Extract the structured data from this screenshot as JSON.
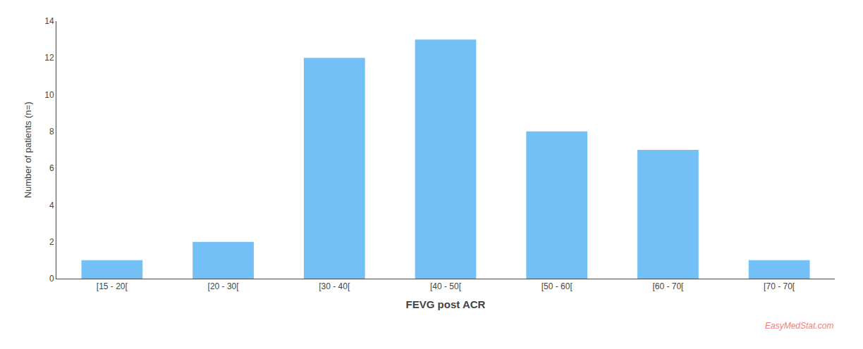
{
  "chart_data": {
    "type": "bar",
    "categories": [
      "[15 - 20[",
      "[20 - 30[",
      "[30 - 40[",
      "[40 - 50[",
      "[50 - 60[",
      "[60 - 70[",
      "[70 - 70["
    ],
    "values": [
      1,
      2,
      12,
      13,
      8,
      7,
      1
    ],
    "color": "#72C0F5",
    "xlabel": "FEVG post ACR",
    "ylabel": "Number of patients (n=)",
    "ylim": [
      0,
      14
    ],
    "yticks": [
      0,
      2,
      4,
      6,
      8,
      10,
      12,
      14
    ],
    "grid": false,
    "annotations": [
      {
        "text": "EasyMedStat.com",
        "color": "#f08080"
      }
    ]
  }
}
